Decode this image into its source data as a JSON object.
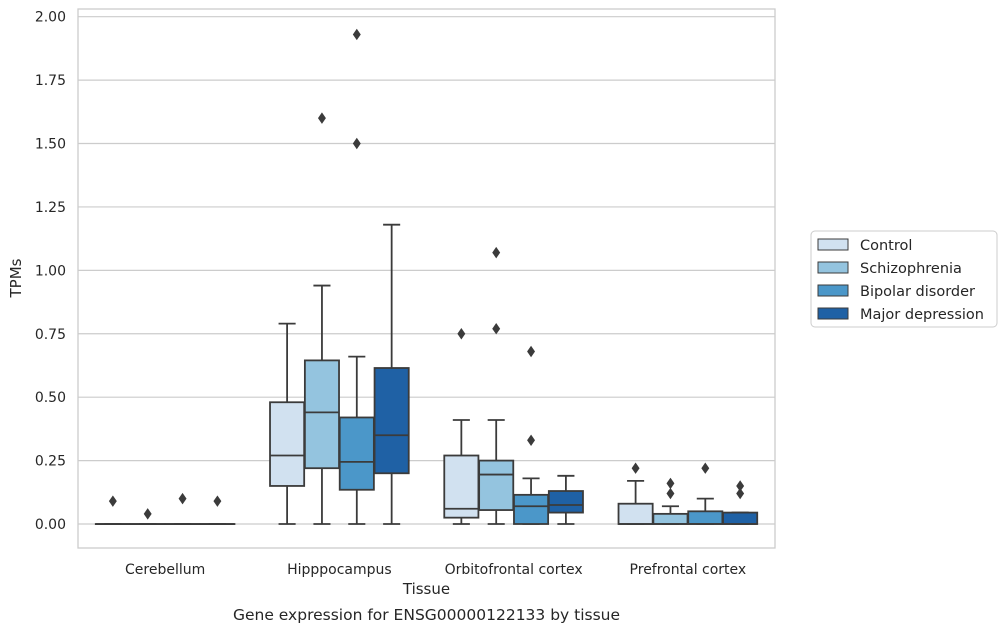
{
  "caption": "Gene expression for ENSG00000122133 by tissue",
  "colors": {
    "Control": "#d1e1f0",
    "Schizophrenia": "#94c4df",
    "Bipolar disorder": "#4b97c9",
    "Major depression": "#1f61a5",
    "edge": "#3b3b3b",
    "grid": "#cccccc"
  },
  "chart_data": {
    "type": "box",
    "xlabel": "Tissue",
    "ylabel": "TPMs",
    "ylim": [
      -0.09,
      2.03
    ],
    "yticks": [
      0.0,
      0.25,
      0.5,
      0.75,
      1.0,
      1.25,
      1.5,
      1.75,
      2.0
    ],
    "ytick_labels": [
      "0.00",
      "0.25",
      "0.50",
      "0.75",
      "1.00",
      "1.25",
      "1.50",
      "1.75",
      "2.00"
    ],
    "categories": [
      "Cerebellum",
      "Hipppocampus",
      "Orbitofrontal cortex",
      "Prefrontal cortex"
    ],
    "grid": "horizontal",
    "legend_position": "right-outside",
    "series": [
      {
        "name": "Control",
        "boxes": [
          {
            "whislo": 0,
            "q1": 0,
            "med": 0,
            "q3": 0,
            "whishi": 0,
            "fliers": [
              0.09
            ]
          },
          {
            "whislo": 0,
            "q1": 0.15,
            "med": 0.27,
            "q3": 0.48,
            "whishi": 0.79,
            "fliers": []
          },
          {
            "whislo": 0,
            "q1": 0.025,
            "med": 0.06,
            "q3": 0.27,
            "whishi": 0.41,
            "fliers": [
              0.75
            ]
          },
          {
            "whislo": 0,
            "q1": 0,
            "med": 0,
            "q3": 0.08,
            "whishi": 0.17,
            "fliers": [
              0.22
            ]
          }
        ]
      },
      {
        "name": "Schizophrenia",
        "boxes": [
          {
            "whislo": 0,
            "q1": 0,
            "med": 0,
            "q3": 0,
            "whishi": 0,
            "fliers": [
              0.04
            ]
          },
          {
            "whislo": 0,
            "q1": 0.22,
            "med": 0.44,
            "q3": 0.645,
            "whishi": 0.94,
            "fliers": [
              1.6
            ]
          },
          {
            "whislo": 0,
            "q1": 0.055,
            "med": 0.195,
            "q3": 0.25,
            "whishi": 0.41,
            "fliers": [
              0.77,
              1.07
            ]
          },
          {
            "whislo": 0,
            "q1": 0,
            "med": 0,
            "q3": 0.04,
            "whishi": 0.07,
            "fliers": [
              0.12,
              0.16
            ]
          }
        ]
      },
      {
        "name": "Bipolar disorder",
        "boxes": [
          {
            "whislo": 0,
            "q1": 0,
            "med": 0,
            "q3": 0,
            "whishi": 0,
            "fliers": [
              0.1
            ]
          },
          {
            "whislo": 0,
            "q1": 0.135,
            "med": 0.245,
            "q3": 0.42,
            "whishi": 0.66,
            "fliers": [
              1.5,
              1.93
            ]
          },
          {
            "whislo": 0,
            "q1": 0,
            "med": 0.07,
            "q3": 0.115,
            "whishi": 0.18,
            "fliers": [
              0.33,
              0.68
            ]
          },
          {
            "whislo": 0,
            "q1": 0,
            "med": 0,
            "q3": 0.05,
            "whishi": 0.1,
            "fliers": [
              0.22
            ]
          }
        ]
      },
      {
        "name": "Major depression",
        "boxes": [
          {
            "whislo": 0,
            "q1": 0,
            "med": 0,
            "q3": 0,
            "whishi": 0,
            "fliers": [
              0.09
            ]
          },
          {
            "whislo": 0,
            "q1": 0.2,
            "med": 0.35,
            "q3": 0.615,
            "whishi": 1.18,
            "fliers": []
          },
          {
            "whislo": 0,
            "q1": 0.045,
            "med": 0.075,
            "q3": 0.13,
            "whishi": 0.19,
            "fliers": []
          },
          {
            "whislo": 0,
            "q1": 0,
            "med": 0,
            "q3": 0.045,
            "whishi": 0.045,
            "fliers": [
              0.12,
              0.15
            ]
          }
        ]
      }
    ]
  }
}
